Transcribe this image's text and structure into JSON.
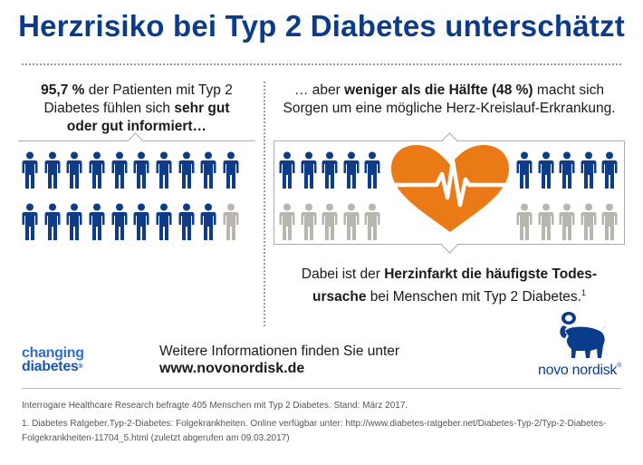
{
  "title": "Herzrisiko bei Typ 2 Diabetes unterschätzt",
  "left_stat": {
    "highlight": "95,7 %",
    "text1": " der Patienten mit Typ 2",
    "text2": "Diabetes fühlen sich ",
    "bold2": "sehr gut",
    "bold3": "oder gut informiert…"
  },
  "right_stat": {
    "text1": "… aber ",
    "bold1": "weniger als die Hälfte (48 %)",
    "text1b": " macht sich",
    "text2": "Sorgen um eine mögliche Herz-Kreislauf-Erkrankung."
  },
  "conclusion": {
    "text1": "Dabei ist der ",
    "bold1": "Herzinfarkt die häufigste Todes-",
    "bold2": "ursache",
    "text2": " bei Menschen mit Typ 2 Diabetes.",
    "sup": "1"
  },
  "colors": {
    "dark_blue": "#0b3c8c",
    "figure_blue": "#0d3d8a",
    "figure_grey": "#b9b6b0",
    "heart_orange": "#ea7a16",
    "logo_blue": "#2b6fd0"
  },
  "people": {
    "left_total": 20,
    "left_blue": 19,
    "right_total": 20,
    "right_blue": 10
  },
  "changing_diabetes_logo": {
    "line1": "changing",
    "line2": "diabetes",
    "mark": "®"
  },
  "more_info": {
    "line1": "Weitere Informationen finden Sie unter",
    "url": "www.novonordisk.de"
  },
  "novo_logo": {
    "brand": "novo nordisk",
    "mark": "®",
    "icon": "apis-bull-logo"
  },
  "source": "Interrogare Healthcare Research befragte 405 Menschen mit Typ 2 Diabetes. Stand: März 2017.",
  "footnote": {
    "line1": "1. Diabetes Ratgeber.Typ-2-Diabetes: Folgekrankheiten. Online verfügbar unter: http://www.diabetes-ratgeber.net/Diabetes-Typ-2/Typ-2-Diabetes-",
    "line2": "Folgekrankheiten-11704_5.html (zuletzt abgerufen am 09.03.2017)"
  }
}
